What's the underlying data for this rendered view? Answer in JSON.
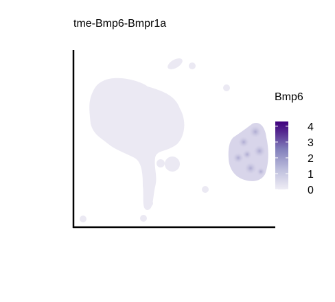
{
  "chart_data": {
    "type": "scatter",
    "title": "tme-Bmp6-Bmpr1a",
    "xlabel": "",
    "ylabel": "",
    "axes_ticks": false,
    "grid": false,
    "legend": {
      "title": "Bmp6",
      "placement": "right",
      "type": "colorbar",
      "range": [
        0,
        4.3
      ],
      "ticks": [
        4,
        3,
        2,
        1,
        0
      ],
      "colors": [
        "#efedf5",
        "#bcbddc",
        "#807dba",
        "#54278f",
        "#3f007d"
      ]
    },
    "clusters": [
      {
        "name": "",
        "expression_level": 0,
        "color": "#ebe9f3"
      },
      {
        "name": "",
        "expression_level": 1.2,
        "color": "#d6d3e8"
      }
    ]
  }
}
